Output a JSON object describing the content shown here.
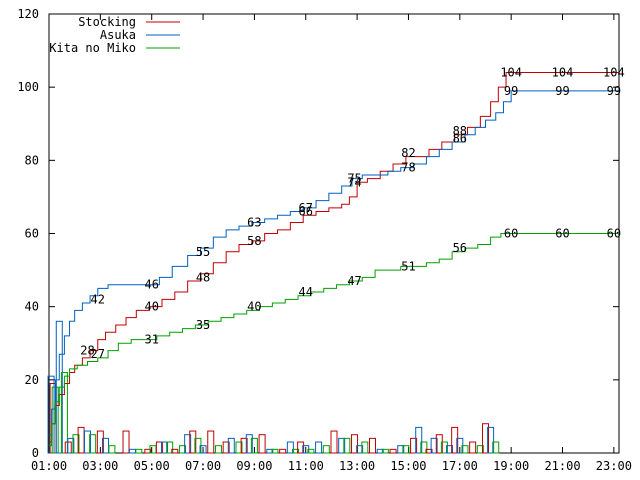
{
  "chart_data": {
    "type": "line",
    "ylim": [
      0,
      120
    ],
    "yticks": [
      0,
      20,
      40,
      60,
      80,
      100,
      120
    ],
    "xlim": [
      1,
      23.2
    ],
    "xticks": [
      {
        "v": 1,
        "label": "01:00"
      },
      {
        "v": 3,
        "label": "03:00"
      },
      {
        "v": 5,
        "label": "05:00"
      },
      {
        "v": 7,
        "label": "07:00"
      },
      {
        "v": 9,
        "label": "09:00"
      },
      {
        "v": 11,
        "label": "11:00"
      },
      {
        "v": 13,
        "label": "13:00"
      },
      {
        "v": 15,
        "label": "15:00"
      },
      {
        "v": 17,
        "label": "17:00"
      },
      {
        "v": 19,
        "label": "19:00"
      },
      {
        "v": 21,
        "label": "21:00"
      },
      {
        "v": 23,
        "label": "23:00"
      }
    ],
    "grid": false,
    "legend": "top-left",
    "series": [
      {
        "name": "Stocking",
        "color": "#c00000",
        "points": [
          [
            1,
            3
          ],
          [
            1.1,
            8
          ],
          [
            1.25,
            13
          ],
          [
            1.4,
            16
          ],
          [
            1.6,
            19
          ],
          [
            1.8,
            22
          ],
          [
            2.0,
            24
          ],
          [
            2.3,
            26
          ],
          [
            2.6,
            28
          ],
          [
            2.9,
            31
          ],
          [
            3.2,
            33
          ],
          [
            3.6,
            35
          ],
          [
            4.0,
            37
          ],
          [
            4.4,
            39
          ],
          [
            4.9,
            40
          ],
          [
            5.4,
            42
          ],
          [
            5.9,
            44
          ],
          [
            6.4,
            47
          ],
          [
            6.9,
            49
          ],
          [
            7.4,
            52
          ],
          [
            7.9,
            55
          ],
          [
            8.4,
            57
          ],
          [
            8.9,
            58
          ],
          [
            9.4,
            60
          ],
          [
            9.9,
            61
          ],
          [
            10.4,
            63
          ],
          [
            10.9,
            65
          ],
          [
            11.4,
            66
          ],
          [
            11.9,
            67
          ],
          [
            12.4,
            68
          ],
          [
            12.7,
            70
          ],
          [
            13.0,
            74
          ],
          [
            13.4,
            75
          ],
          [
            13.9,
            77
          ],
          [
            14.4,
            79
          ],
          [
            14.9,
            81
          ],
          [
            15.3,
            81
          ],
          [
            15.8,
            83
          ],
          [
            16.3,
            85
          ],
          [
            16.8,
            87
          ],
          [
            17.3,
            89
          ],
          [
            17.8,
            92
          ],
          [
            18.2,
            96
          ],
          [
            18.5,
            100
          ],
          [
            18.8,
            104
          ],
          [
            19.2,
            104
          ],
          [
            23.2,
            104
          ]
        ],
        "labels": [
          [
            2.5,
            28,
            "28"
          ],
          [
            5.0,
            40,
            "40"
          ],
          [
            7.0,
            48,
            "48"
          ],
          [
            9.0,
            58,
            "58"
          ],
          [
            11.0,
            66,
            "66"
          ],
          [
            12.9,
            74,
            "74"
          ],
          [
            15.0,
            82,
            "82"
          ],
          [
            17.0,
            88,
            "88"
          ],
          [
            19.0,
            104,
            "104"
          ],
          [
            21.0,
            104,
            "104"
          ],
          [
            23.0,
            104,
            "104"
          ]
        ]
      },
      {
        "name": "Asuka",
        "color": "#0060c0",
        "points": [
          [
            1,
            5
          ],
          [
            1.1,
            12
          ],
          [
            1.25,
            20
          ],
          [
            1.4,
            27
          ],
          [
            1.6,
            32
          ],
          [
            1.8,
            36
          ],
          [
            2.0,
            39
          ],
          [
            2.3,
            41
          ],
          [
            2.6,
            43
          ],
          [
            2.9,
            45
          ],
          [
            3.3,
            46
          ],
          [
            4.0,
            46
          ],
          [
            4.5,
            46
          ],
          [
            4.9,
            46
          ],
          [
            5.3,
            48
          ],
          [
            5.8,
            51
          ],
          [
            6.4,
            54
          ],
          [
            6.9,
            56
          ],
          [
            7.4,
            59
          ],
          [
            7.9,
            61
          ],
          [
            8.4,
            62
          ],
          [
            8.9,
            63
          ],
          [
            9.4,
            64
          ],
          [
            9.9,
            65
          ],
          [
            10.4,
            66
          ],
          [
            10.9,
            67
          ],
          [
            11.4,
            69
          ],
          [
            11.9,
            71
          ],
          [
            12.4,
            73
          ],
          [
            12.8,
            75
          ],
          [
            13.2,
            76
          ],
          [
            13.7,
            76
          ],
          [
            14.2,
            77
          ],
          [
            14.7,
            78
          ],
          [
            15.2,
            79
          ],
          [
            15.7,
            81
          ],
          [
            16.2,
            83
          ],
          [
            16.7,
            85
          ],
          [
            17.2,
            87
          ],
          [
            17.6,
            89
          ],
          [
            18.0,
            91
          ],
          [
            18.4,
            93
          ],
          [
            18.7,
            96
          ],
          [
            19.0,
            99
          ],
          [
            19.4,
            99
          ],
          [
            23.2,
            99
          ]
        ],
        "labels": [
          [
            2.9,
            42,
            "42"
          ],
          [
            5.0,
            46,
            "46"
          ],
          [
            7.0,
            55,
            "55"
          ],
          [
            9.0,
            63,
            "63"
          ],
          [
            11.0,
            67,
            "67"
          ],
          [
            12.9,
            75,
            "75"
          ],
          [
            15.0,
            78,
            "78"
          ],
          [
            17.0,
            86,
            "86"
          ],
          [
            19.0,
            99,
            "99"
          ],
          [
            21.0,
            99,
            "99"
          ],
          [
            23.0,
            99,
            "99"
          ]
        ]
      },
      {
        "name": "Kita no Miko",
        "color": "#00a000",
        "points": [
          [
            1,
            2
          ],
          [
            1.1,
            8
          ],
          [
            1.25,
            14
          ],
          [
            1.4,
            18
          ],
          [
            1.6,
            21
          ],
          [
            1.8,
            23
          ],
          [
            2.1,
            24
          ],
          [
            2.5,
            25
          ],
          [
            2.9,
            26
          ],
          [
            3.3,
            28
          ],
          [
            3.7,
            30
          ],
          [
            4.2,
            31
          ],
          [
            4.7,
            31
          ],
          [
            5.2,
            32
          ],
          [
            5.7,
            33
          ],
          [
            6.2,
            34
          ],
          [
            6.7,
            35
          ],
          [
            7.2,
            36
          ],
          [
            7.7,
            37
          ],
          [
            8.2,
            38
          ],
          [
            8.7,
            39
          ],
          [
            9.2,
            40
          ],
          [
            9.7,
            41
          ],
          [
            10.2,
            42
          ],
          [
            10.7,
            43
          ],
          [
            11.2,
            44
          ],
          [
            11.7,
            45
          ],
          [
            12.2,
            46
          ],
          [
            12.7,
            47
          ],
          [
            13.2,
            48
          ],
          [
            13.7,
            50
          ],
          [
            14.2,
            50
          ],
          [
            14.7,
            51
          ],
          [
            15.2,
            51
          ],
          [
            15.7,
            52
          ],
          [
            16.2,
            53
          ],
          [
            16.7,
            55
          ],
          [
            17.2,
            56
          ],
          [
            17.7,
            57
          ],
          [
            18.2,
            59
          ],
          [
            18.6,
            60
          ],
          [
            19.0,
            60
          ],
          [
            23.2,
            60
          ]
        ],
        "labels": [
          [
            2.9,
            27,
            "27"
          ],
          [
            5.0,
            31,
            "31"
          ],
          [
            7.0,
            35,
            "35"
          ],
          [
            9.0,
            40,
            "40"
          ],
          [
            11.0,
            44,
            "44"
          ],
          [
            12.9,
            47,
            "47"
          ],
          [
            15.0,
            51,
            "51"
          ],
          [
            17.0,
            56,
            "56"
          ],
          [
            19.0,
            60,
            "60"
          ],
          [
            21.0,
            60,
            "60"
          ],
          [
            23.0,
            60,
            "60"
          ]
        ]
      }
    ],
    "bars": [
      [
        1.08,
        "#0060c0",
        21
      ],
      [
        1.16,
        "#c00000",
        19
      ],
      [
        1.24,
        "#00a000",
        18
      ],
      [
        1.4,
        "#0060c0",
        36
      ],
      [
        1.6,
        "#00a000",
        22
      ],
      [
        1.75,
        "#c00000",
        3
      ],
      [
        1.85,
        "#0060c0",
        4
      ],
      [
        2.05,
        "#00a000",
        5
      ],
      [
        2.25,
        "#c00000",
        7
      ],
      [
        2.5,
        "#0060c0",
        6
      ],
      [
        2.7,
        "#00a000",
        5
      ],
      [
        3.0,
        "#c00000",
        6
      ],
      [
        3.2,
        "#0060c0",
        4
      ],
      [
        3.45,
        "#00a000",
        2
      ],
      [
        4.0,
        "#c00000",
        6
      ],
      [
        4.25,
        "#0060c0",
        1
      ],
      [
        4.5,
        "#00a000",
        1
      ],
      [
        4.85,
        "#c00000",
        1
      ],
      [
        5.05,
        "#00a000",
        2
      ],
      [
        5.3,
        "#c00000",
        3
      ],
      [
        5.5,
        "#0060c0",
        3
      ],
      [
        5.7,
        "#00a000",
        3
      ],
      [
        5.9,
        "#c00000",
        1
      ],
      [
        6.2,
        "#00a000",
        2
      ],
      [
        6.4,
        "#0060c0",
        5
      ],
      [
        6.6,
        "#c00000",
        6
      ],
      [
        6.8,
        "#00a000",
        4
      ],
      [
        7.0,
        "#0060c0",
        2
      ],
      [
        7.3,
        "#c00000",
        6
      ],
      [
        7.6,
        "#00a000",
        2
      ],
      [
        7.9,
        "#c00000",
        3
      ],
      [
        8.1,
        "#0060c0",
        4
      ],
      [
        8.4,
        "#00a000",
        3
      ],
      [
        8.6,
        "#c00000",
        4
      ],
      [
        8.8,
        "#0060c0",
        5
      ],
      [
        9.0,
        "#00a000",
        4
      ],
      [
        9.3,
        "#c00000",
        5
      ],
      [
        9.6,
        "#0060c0",
        1
      ],
      [
        9.8,
        "#00a000",
        1
      ],
      [
        10.1,
        "#c00000",
        1
      ],
      [
        10.4,
        "#0060c0",
        3
      ],
      [
        10.6,
        "#00a000",
        1
      ],
      [
        10.8,
        "#c00000",
        3
      ],
      [
        11.0,
        "#0060c0",
        2
      ],
      [
        11.2,
        "#00a000",
        1
      ],
      [
        11.5,
        "#0060c0",
        3
      ],
      [
        11.8,
        "#00a000",
        2
      ],
      [
        12.1,
        "#c00000",
        6
      ],
      [
        12.4,
        "#0060c0",
        4
      ],
      [
        12.6,
        "#00a000",
        4
      ],
      [
        12.9,
        "#c00000",
        5
      ],
      [
        13.1,
        "#0060c0",
        2
      ],
      [
        13.3,
        "#00a000",
        3
      ],
      [
        13.6,
        "#c00000",
        4
      ],
      [
        13.9,
        "#0060c0",
        1
      ],
      [
        14.1,
        "#00a000",
        1
      ],
      [
        14.4,
        "#c00000",
        1
      ],
      [
        14.7,
        "#0060c0",
        2
      ],
      [
        14.9,
        "#00a000",
        2
      ],
      [
        15.2,
        "#c00000",
        4
      ],
      [
        15.4,
        "#0060c0",
        7
      ],
      [
        15.6,
        "#00a000",
        3
      ],
      [
        15.8,
        "#c00000",
        1
      ],
      [
        16.0,
        "#0060c0",
        4
      ],
      [
        16.2,
        "#c00000",
        5
      ],
      [
        16.4,
        "#00a000",
        3
      ],
      [
        16.6,
        "#0060c0",
        2
      ],
      [
        16.8,
        "#c00000",
        7
      ],
      [
        17.0,
        "#0060c0",
        4
      ],
      [
        17.2,
        "#00a000",
        2
      ],
      [
        17.5,
        "#c00000",
        3
      ],
      [
        17.8,
        "#00a000",
        2
      ],
      [
        18.0,
        "#c00000",
        8
      ],
      [
        18.2,
        "#0060c0",
        7
      ],
      [
        18.4,
        "#00a000",
        3
      ]
    ]
  }
}
